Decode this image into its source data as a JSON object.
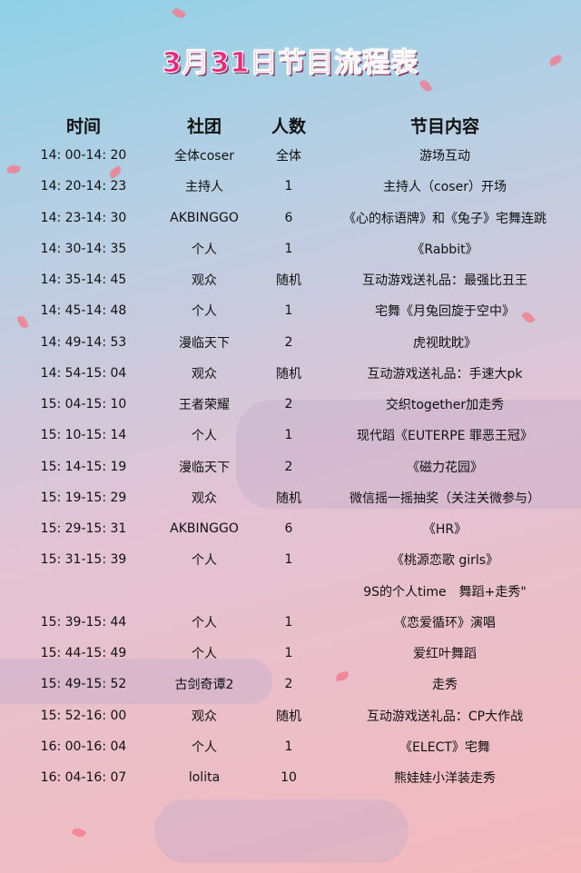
{
  "title": "3月31日节目流程表",
  "table": {
    "header": [
      "时间",
      "社团",
      "人数",
      "节目内容"
    ],
    "rows": [
      {
        "time": "14: 00-14: 20",
        "club": "全体coser",
        "count": "全体",
        "content": "游场互动"
      },
      {
        "time": "14: 20-14: 23",
        "club": "主持人",
        "count": "1",
        "content": "主持人（coser）开场"
      },
      {
        "time": "14: 23-14: 30",
        "club": "AKBINGGO",
        "count": "6",
        "content": "《心的标语牌》和《兔子》宅舞连跳"
      },
      {
        "time": "14: 30-14: 35",
        "club": "个人",
        "count": "1",
        "content": "《Rabbit》"
      },
      {
        "time": "14: 35-14: 45",
        "club": "观众",
        "count": "随机",
        "content": "互动游戏送礼品：最强比丑王"
      },
      {
        "time": "14: 45-14: 48",
        "club": "个人",
        "count": "1",
        "content": "宅舞《月兔回旋于空中》"
      },
      {
        "time": "14: 49-14: 53",
        "club": "漫临天下",
        "count": "2",
        "content": "虎视眈眈》"
      },
      {
        "time": "14: 54-15: 04",
        "club": "观众",
        "count": "随机",
        "content": "互动游戏送礼品：手速大pk"
      },
      {
        "time": "15: 04-15: 10",
        "club": "王者荣耀",
        "count": "2",
        "content": "交织together加走秀"
      },
      {
        "time": "15: 10-15: 14",
        "club": "个人",
        "count": "1",
        "content": "现代蹈《EUTERPE 罪恶王冠》"
      },
      {
        "time": "15: 14-15: 19",
        "club": "漫临天下",
        "count": "2",
        "content": "《磁力花园》"
      },
      {
        "time": "15: 19-15: 29",
        "club": "观众",
        "count": "随机",
        "content": "微信摇一摇抽奖（关注关微参与）"
      },
      {
        "time": "15: 29-15: 31",
        "club": "AKBINGGO",
        "count": "6",
        "content": "《HR》"
      },
      {
        "time": "15: 31-15: 39",
        "club": "个人",
        "count": "1",
        "content": "《桃源恋歌 girls》"
      },
      {
        "content": "9S的个人time　舞蹈+走秀\""
      },
      {
        "time": "15: 39-15: 44",
        "club": "个人",
        "count": "1",
        "content": "《恋爱循环》演唱"
      },
      {
        "time": "15: 44-15: 49",
        "club": "个人",
        "count": "1",
        "content": "爱红叶舞蹈"
      },
      {
        "time": "15: 49-15: 52",
        "club": "古剑奇谭2",
        "count": "2",
        "content": "走秀"
      },
      {
        "time": "15: 52-16: 00",
        "club": "观众",
        "count": "随机",
        "content": "互动游戏送礼品：CP大作战"
      },
      {
        "time": "16: 00-16: 04",
        "club": "个人",
        "count": "1",
        "content": "《ELECT》宅舞"
      },
      {
        "time": "16: 04-16: 07",
        "club": "lolita",
        "count": "10",
        "content": "熊娃娃小洋装走秀"
      }
    ]
  }
}
